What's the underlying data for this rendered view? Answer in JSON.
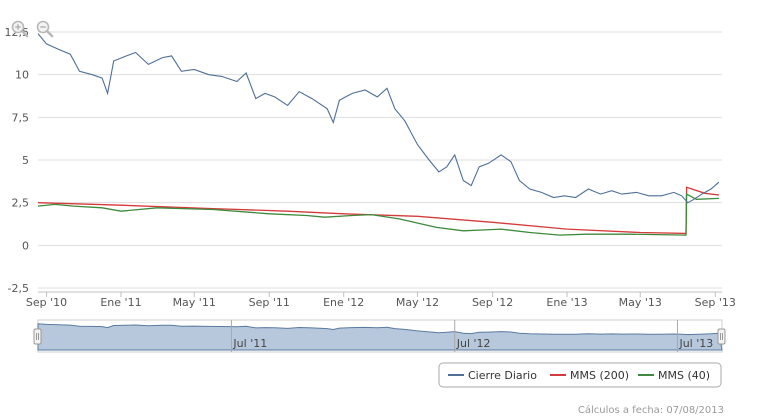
{
  "chart_data": {
    "type": "line",
    "y_ticks": [
      "12,5",
      "10",
      "7,5",
      "5",
      "2,5",
      "0",
      "-2,5"
    ],
    "y_tick_values": [
      12.5,
      10,
      7.5,
      5,
      2.5,
      0,
      -2.5
    ],
    "ylim": [
      -2.5,
      12.5
    ],
    "x_tick_labels": [
      "Sep '10",
      "Ene '11",
      "May '11",
      "Sep '11",
      "Ene '12",
      "May '12",
      "Sep '12",
      "Ene '13",
      "May '13",
      "Sep '13"
    ],
    "x_tick_dates": [
      "2010-09-01",
      "2011-01-01",
      "2011-05-01",
      "2011-09-01",
      "2012-01-01",
      "2012-05-01",
      "2012-09-01",
      "2013-01-01",
      "2013-05-01",
      "2013-09-01"
    ],
    "xlim": [
      "2010-08-18",
      "2013-09-12"
    ],
    "grid": "horizontal",
    "series": [
      {
        "name": "Cierre Diario",
        "color": "#4f6f97",
        "points": [
          [
            "2010-08-18",
            12.4
          ],
          [
            "2010-09-01",
            11.8
          ],
          [
            "2010-09-20",
            11.5
          ],
          [
            "2010-10-10",
            11.2
          ],
          [
            "2010-10-25",
            10.2
          ],
          [
            "2010-11-15",
            10.0
          ],
          [
            "2010-12-01",
            9.8
          ],
          [
            "2010-12-10",
            8.9
          ],
          [
            "2010-12-20",
            10.8
          ],
          [
            "2011-01-10",
            11.1
          ],
          [
            "2011-01-25",
            11.3
          ],
          [
            "2011-02-15",
            10.6
          ],
          [
            "2011-03-10",
            11.0
          ],
          [
            "2011-03-25",
            11.1
          ],
          [
            "2011-04-10",
            10.2
          ],
          [
            "2011-05-01",
            10.3
          ],
          [
            "2011-05-25",
            10.0
          ],
          [
            "2011-06-15",
            9.9
          ],
          [
            "2011-07-10",
            9.6
          ],
          [
            "2011-07-25",
            10.1
          ],
          [
            "2011-08-10",
            8.6
          ],
          [
            "2011-08-25",
            8.9
          ],
          [
            "2011-09-10",
            8.7
          ],
          [
            "2011-10-01",
            8.2
          ],
          [
            "2011-10-20",
            9.0
          ],
          [
            "2011-11-10",
            8.6
          ],
          [
            "2011-12-05",
            8.0
          ],
          [
            "2011-12-15",
            7.2
          ],
          [
            "2011-12-25",
            8.5
          ],
          [
            "2012-01-15",
            8.9
          ],
          [
            "2012-02-05",
            9.1
          ],
          [
            "2012-02-25",
            8.7
          ],
          [
            "2012-03-12",
            9.2
          ],
          [
            "2012-03-25",
            8.0
          ],
          [
            "2012-04-10",
            7.3
          ],
          [
            "2012-05-01",
            5.9
          ],
          [
            "2012-05-20",
            5.0
          ],
          [
            "2012-06-05",
            4.3
          ],
          [
            "2012-06-18",
            4.6
          ],
          [
            "2012-07-01",
            5.3
          ],
          [
            "2012-07-15",
            3.8
          ],
          [
            "2012-07-28",
            3.5
          ],
          [
            "2012-08-10",
            4.6
          ],
          [
            "2012-08-25",
            4.8
          ],
          [
            "2012-09-15",
            5.3
          ],
          [
            "2012-10-01",
            4.9
          ],
          [
            "2012-10-15",
            3.8
          ],
          [
            "2012-11-01",
            3.3
          ],
          [
            "2012-11-20",
            3.1
          ],
          [
            "2012-12-10",
            2.8
          ],
          [
            "2012-12-28",
            2.9
          ],
          [
            "2013-01-15",
            2.8
          ],
          [
            "2013-02-05",
            3.3
          ],
          [
            "2013-02-25",
            3.0
          ],
          [
            "2013-03-15",
            3.2
          ],
          [
            "2013-04-01",
            3.0
          ],
          [
            "2013-04-25",
            3.1
          ],
          [
            "2013-05-15",
            2.9
          ],
          [
            "2013-06-05",
            2.9
          ],
          [
            "2013-06-25",
            3.1
          ],
          [
            "2013-07-08",
            2.9
          ],
          [
            "2013-07-18",
            2.5
          ],
          [
            "2013-07-28",
            2.7
          ],
          [
            "2013-08-10",
            3.0
          ],
          [
            "2013-08-25",
            3.3
          ],
          [
            "2013-09-07",
            3.7
          ]
        ]
      },
      {
        "name": "MMS (200)",
        "color": "#d43b3b",
        "points": [
          [
            "2010-08-18",
            2.5
          ],
          [
            "2011-01-01",
            2.35
          ],
          [
            "2011-06-01",
            2.15
          ],
          [
            "2011-10-01",
            2.0
          ],
          [
            "2012-01-01",
            1.85
          ],
          [
            "2012-05-01",
            1.7
          ],
          [
            "2012-09-01",
            1.35
          ],
          [
            "2013-01-01",
            0.95
          ],
          [
            "2013-05-01",
            0.75
          ],
          [
            "2013-07-15",
            0.7
          ],
          [
            "2013-07-16",
            3.4
          ],
          [
            "2013-08-15",
            3.05
          ],
          [
            "2013-09-07",
            2.95
          ]
        ]
      },
      {
        "name": "MMS (40)",
        "color": "#3d8a3d",
        "points": [
          [
            "2010-08-18",
            2.3
          ],
          [
            "2010-09-15",
            2.4
          ],
          [
            "2010-10-15",
            2.3
          ],
          [
            "2010-12-01",
            2.2
          ],
          [
            "2011-01-01",
            2.0
          ],
          [
            "2011-03-01",
            2.2
          ],
          [
            "2011-06-01",
            2.1
          ],
          [
            "2011-09-01",
            1.85
          ],
          [
            "2011-11-01",
            1.75
          ],
          [
            "2011-12-01",
            1.65
          ],
          [
            "2012-01-15",
            1.75
          ],
          [
            "2012-02-15",
            1.8
          ],
          [
            "2012-04-01",
            1.55
          ],
          [
            "2012-06-01",
            1.05
          ],
          [
            "2012-07-15",
            0.85
          ],
          [
            "2012-08-15",
            0.9
          ],
          [
            "2012-09-15",
            0.95
          ],
          [
            "2012-11-01",
            0.75
          ],
          [
            "2012-12-20",
            0.6
          ],
          [
            "2013-02-01",
            0.65
          ],
          [
            "2013-04-15",
            0.65
          ],
          [
            "2013-07-15",
            0.6
          ],
          [
            "2013-07-16",
            3.0
          ],
          [
            "2013-08-01",
            2.7
          ],
          [
            "2013-09-07",
            2.75
          ]
        ]
      }
    ],
    "navigator": {
      "labels": [
        "Jul '11",
        "Jul '12",
        "Jul '13"
      ],
      "label_dates": [
        "2011-07-01",
        "2012-07-01",
        "2013-07-01"
      ]
    },
    "legend": {
      "position": "bottom-right",
      "items": [
        "Cierre Diario",
        "MMS (200)",
        "MMS (40)"
      ]
    }
  },
  "footer": "Cálculos a fecha: 07/08/2013",
  "icons": [
    "zoom-in-icon",
    "zoom-out-icon"
  ]
}
